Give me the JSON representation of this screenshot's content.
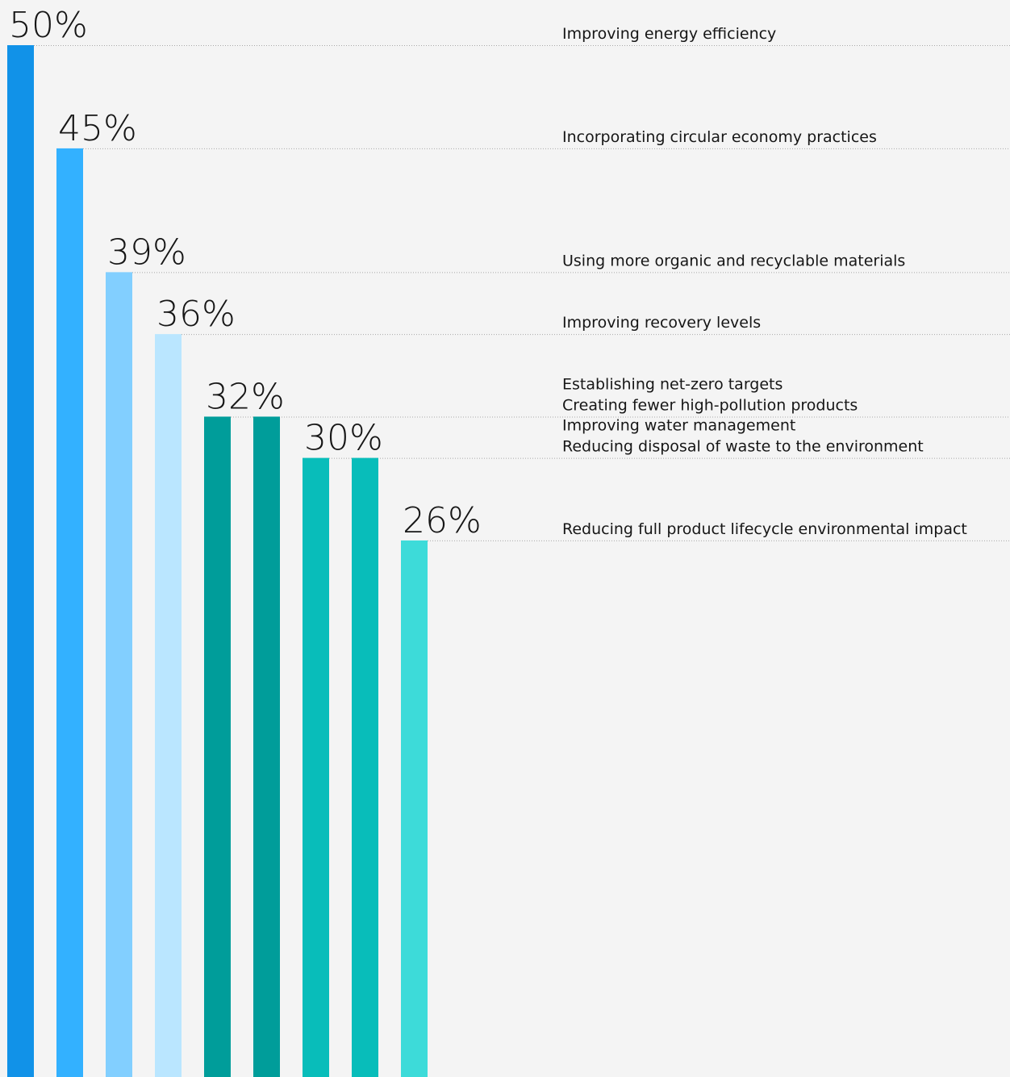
{
  "chart_data": {
    "type": "bar",
    "ylim": [
      0,
      50
    ],
    "categories": [
      "Improving energy efficiency",
      "Incorporating circular economy practices",
      "Using more organic and recyclable materials",
      "Improving recovery levels",
      "Establishing net-zero targets",
      "Creating fewer high-pollution products",
      "Improving water management",
      "Reducing disposal of waste to the environment",
      "Reducing full product lifecycle environmental impact"
    ],
    "values": [
      50,
      45,
      39,
      36,
      32,
      32,
      30,
      30,
      26
    ],
    "value_labels": [
      "50%",
      "45%",
      "39%",
      "36%",
      "32%",
      "",
      "30%",
      "",
      "26%"
    ],
    "colors": [
      "#1192e8",
      "#33b1ff",
      "#82cfff",
      "#bae6ff",
      "#009d9a",
      "#009d9a",
      "#08bdba",
      "#08bdba",
      "#3ddbd9"
    ],
    "legend": "right"
  }
}
